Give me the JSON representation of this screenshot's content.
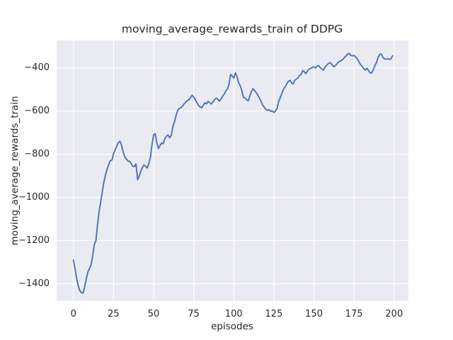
{
  "title": "moving_average_rewards_train of DDPG",
  "chart_data": {
    "type": "line",
    "title": "moving_average_rewards_train of DDPG",
    "xlabel": "episodes",
    "ylabel": "moving_average_rewards_train",
    "legend": false,
    "grid": true,
    "bg_color": "#eaeaf2",
    "grid_color": "#ffffff",
    "line_color": "#4c72b0",
    "text_color": "#262626",
    "xlim": [
      -10.5,
      208.9
    ],
    "ylim": [
      -1480,
      -273
    ],
    "xticks": {
      "values": [
        0,
        25,
        50,
        75,
        100,
        125,
        150,
        175,
        200
      ],
      "labels": [
        "0",
        "25",
        "50",
        "75",
        "100",
        "125",
        "150",
        "175",
        "200"
      ]
    },
    "yticks": {
      "values": [
        -400,
        -600,
        -800,
        -1000,
        -1200,
        -1400
      ],
      "labels": [
        "−400",
        "−600",
        "−800",
        "−1000",
        "−1200",
        "−1400"
      ]
    },
    "x_start": 0,
    "x_step": 1,
    "series": [
      {
        "name": "moving_average_rewards_train",
        "values": [
          -1290,
          -1332,
          -1376,
          -1410,
          -1432,
          -1441,
          -1443,
          -1415,
          -1377,
          -1345,
          -1330,
          -1313,
          -1270,
          -1218,
          -1200,
          -1127,
          -1065,
          -1020,
          -972,
          -928,
          -895,
          -868,
          -848,
          -830,
          -827,
          -797,
          -780,
          -763,
          -746,
          -740,
          -758,
          -790,
          -812,
          -822,
          -832,
          -833,
          -843,
          -856,
          -857,
          -845,
          -918,
          -902,
          -879,
          -862,
          -850,
          -856,
          -864,
          -842,
          -815,
          -755,
          -710,
          -705,
          -748,
          -774,
          -760,
          -748,
          -752,
          -729,
          -716,
          -711,
          -724,
          -714,
          -672,
          -650,
          -620,
          -597,
          -588,
          -585,
          -578,
          -567,
          -559,
          -551,
          -549,
          -539,
          -527,
          -536,
          -547,
          -561,
          -574,
          -581,
          -585,
          -572,
          -562,
          -567,
          -555,
          -561,
          -568,
          -557,
          -549,
          -541,
          -545,
          -555,
          -545,
          -532,
          -522,
          -508,
          -498,
          -477,
          -430,
          -438,
          -447,
          -424,
          -440,
          -469,
          -483,
          -505,
          -536,
          -540,
          -548,
          -553,
          -530,
          -510,
          -497,
          -506,
          -515,
          -527,
          -541,
          -555,
          -572,
          -583,
          -592,
          -597,
          -594,
          -601,
          -600,
          -607,
          -600,
          -588,
          -555,
          -538,
          -518,
          -500,
          -488,
          -474,
          -463,
          -458,
          -470,
          -475,
          -458,
          -452,
          -447,
          -436,
          -430,
          -413,
          -419,
          -427,
          -414,
          -406,
          -402,
          -398,
          -396,
          -401,
          -392,
          -390,
          -401,
          -406,
          -410,
          -395,
          -388,
          -380,
          -376,
          -382,
          -394,
          -393,
          -385,
          -375,
          -371,
          -366,
          -361,
          -352,
          -345,
          -336,
          -333,
          -342,
          -345,
          -343,
          -349,
          -358,
          -372,
          -385,
          -393,
          -403,
          -411,
          -402,
          -413,
          -424,
          -424,
          -408,
          -390,
          -375,
          -352,
          -338,
          -336,
          -352,
          -359,
          -360,
          -358,
          -361,
          -359,
          -344
        ]
      }
    ]
  }
}
